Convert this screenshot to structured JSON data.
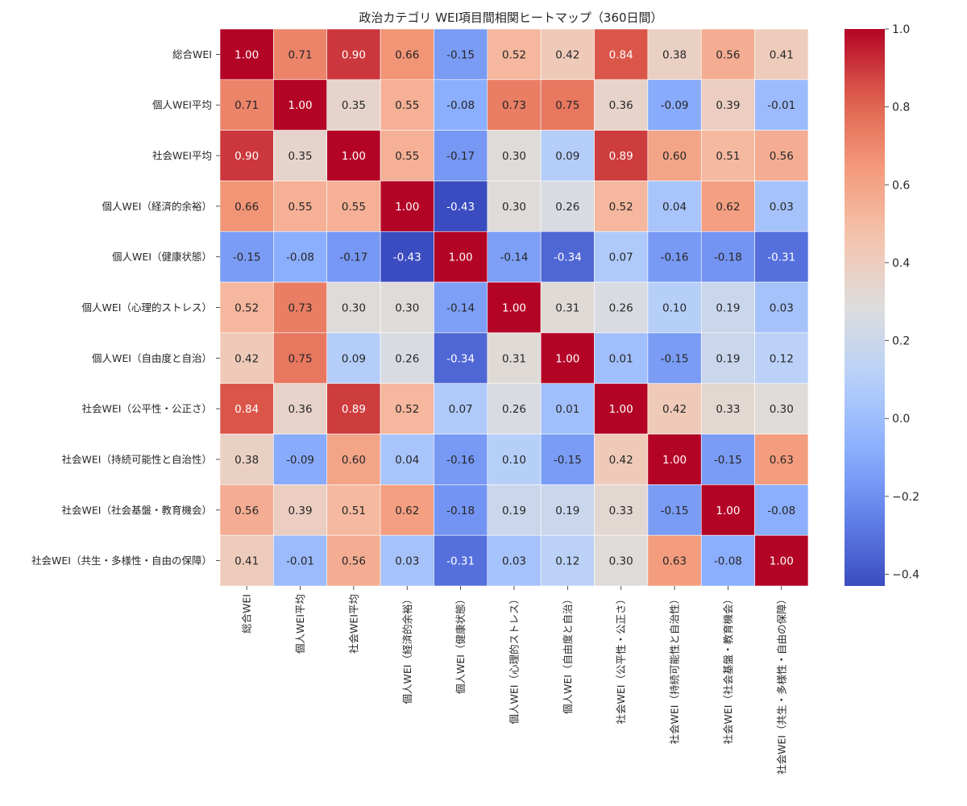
{
  "chart_data": {
    "type": "heatmap",
    "title": "政治カテゴリ WEI項目間相関ヒートマップ（360日間）",
    "labels": [
      "総合WEI",
      "個人WEI平均",
      "社会WEI平均",
      "個人WEI（経済的余裕）",
      "個人WEI（健康状態）",
      "個人WEI（心理的ストレス）",
      "個人WEI（自由度と自治）",
      "社会WEI（公平性・公正さ）",
      "社会WEI（持続可能性と自治性）",
      "社会WEI（社会基盤・教育機会）",
      "社会WEI（共生・多様性・自由の保障）"
    ],
    "matrix": [
      [
        1.0,
        0.71,
        0.9,
        0.66,
        -0.15,
        0.52,
        0.42,
        0.84,
        0.38,
        0.56,
        0.41
      ],
      [
        0.71,
        1.0,
        0.35,
        0.55,
        -0.08,
        0.73,
        0.75,
        0.36,
        -0.09,
        0.39,
        -0.01
      ],
      [
        0.9,
        0.35,
        1.0,
        0.55,
        -0.17,
        0.3,
        0.09,
        0.89,
        0.6,
        0.51,
        0.56
      ],
      [
        0.66,
        0.55,
        0.55,
        1.0,
        -0.43,
        0.3,
        0.26,
        0.52,
        0.04,
        0.62,
        0.03
      ],
      [
        -0.15,
        -0.08,
        -0.17,
        -0.43,
        1.0,
        -0.14,
        -0.34,
        0.07,
        -0.16,
        -0.18,
        -0.31
      ],
      [
        0.52,
        0.73,
        0.3,
        0.3,
        -0.14,
        1.0,
        0.31,
        0.26,
        0.1,
        0.19,
        0.03
      ],
      [
        0.42,
        0.75,
        0.09,
        0.26,
        -0.34,
        0.31,
        1.0,
        0.01,
        -0.15,
        0.19,
        0.12
      ],
      [
        0.84,
        0.36,
        0.89,
        0.52,
        0.07,
        0.26,
        0.01,
        1.0,
        0.42,
        0.33,
        0.3
      ],
      [
        0.38,
        -0.09,
        0.6,
        0.04,
        -0.16,
        0.1,
        -0.15,
        0.42,
        1.0,
        -0.15,
        0.63
      ],
      [
        0.56,
        0.39,
        0.51,
        0.62,
        -0.18,
        0.19,
        0.19,
        0.33,
        -0.15,
        1.0,
        -0.08
      ],
      [
        0.41,
        -0.01,
        0.56,
        0.03,
        -0.31,
        0.03,
        0.12,
        0.3,
        0.63,
        -0.08,
        1.0
      ]
    ],
    "value_range": [
      -0.43,
      1.0
    ],
    "colormap": "coolwarm",
    "colorbar_ticks": [
      "1.0",
      "0.8",
      "0.6",
      "0.4",
      "0.2",
      "0.0",
      "−0.2",
      "−0.4"
    ],
    "colorbar_tick_values": [
      1.0,
      0.8,
      0.6,
      0.4,
      0.2,
      0.0,
      -0.2,
      -0.4
    ],
    "annotate": true,
    "grid": false
  }
}
